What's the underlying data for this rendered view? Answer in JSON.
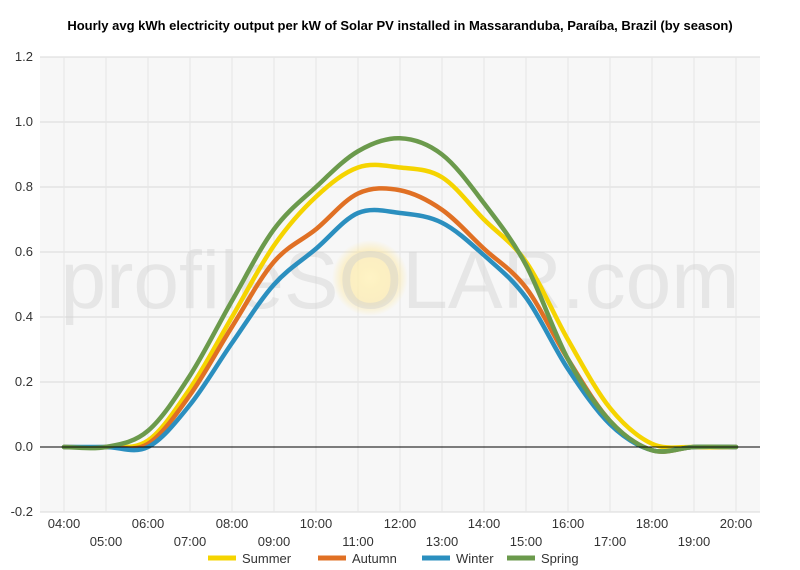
{
  "chart_data": {
    "type": "line",
    "title": "Hourly avg kWh electricity output per kW of Solar PV installed in Massaranduba, Paraíba, Brazil (by season)",
    "xlabel": "",
    "ylabel": "",
    "x": [
      "04:00",
      "05:00",
      "06:00",
      "07:00",
      "08:00",
      "09:00",
      "10:00",
      "11:00",
      "12:00",
      "13:00",
      "14:00",
      "15:00",
      "16:00",
      "17:00",
      "18:00",
      "19:00",
      "20:00"
    ],
    "ylim": [
      -0.2,
      1.2
    ],
    "yticks": [
      -0.2,
      0.0,
      0.2,
      0.4,
      0.6,
      0.8,
      1.0,
      1.2
    ],
    "grid": true,
    "legend": "bottom",
    "series": [
      {
        "name": "Summer",
        "color": "#f5d400",
        "values": [
          0,
          0,
          0.02,
          0.18,
          0.4,
          0.62,
          0.77,
          0.86,
          0.86,
          0.83,
          0.7,
          0.57,
          0.33,
          0.12,
          0.01,
          0,
          0
        ]
      },
      {
        "name": "Autumn",
        "color": "#e07024",
        "values": [
          0,
          0,
          0.01,
          0.16,
          0.37,
          0.57,
          0.67,
          0.78,
          0.79,
          0.73,
          0.61,
          0.49,
          0.27,
          0.08,
          -0.01,
          0,
          0
        ]
      },
      {
        "name": "Winter",
        "color": "#2b8fbf",
        "values": [
          0,
          0,
          0,
          0.13,
          0.32,
          0.5,
          0.61,
          0.72,
          0.72,
          0.69,
          0.59,
          0.46,
          0.24,
          0.07,
          -0.01,
          0,
          0
        ]
      },
      {
        "name": "Spring",
        "color": "#6b9a4c",
        "values": [
          0,
          0,
          0.05,
          0.22,
          0.45,
          0.67,
          0.8,
          0.91,
          0.95,
          0.9,
          0.75,
          0.56,
          0.27,
          0.08,
          -0.01,
          0,
          0
        ]
      }
    ],
    "watermark": "profileSOLAR.com"
  }
}
